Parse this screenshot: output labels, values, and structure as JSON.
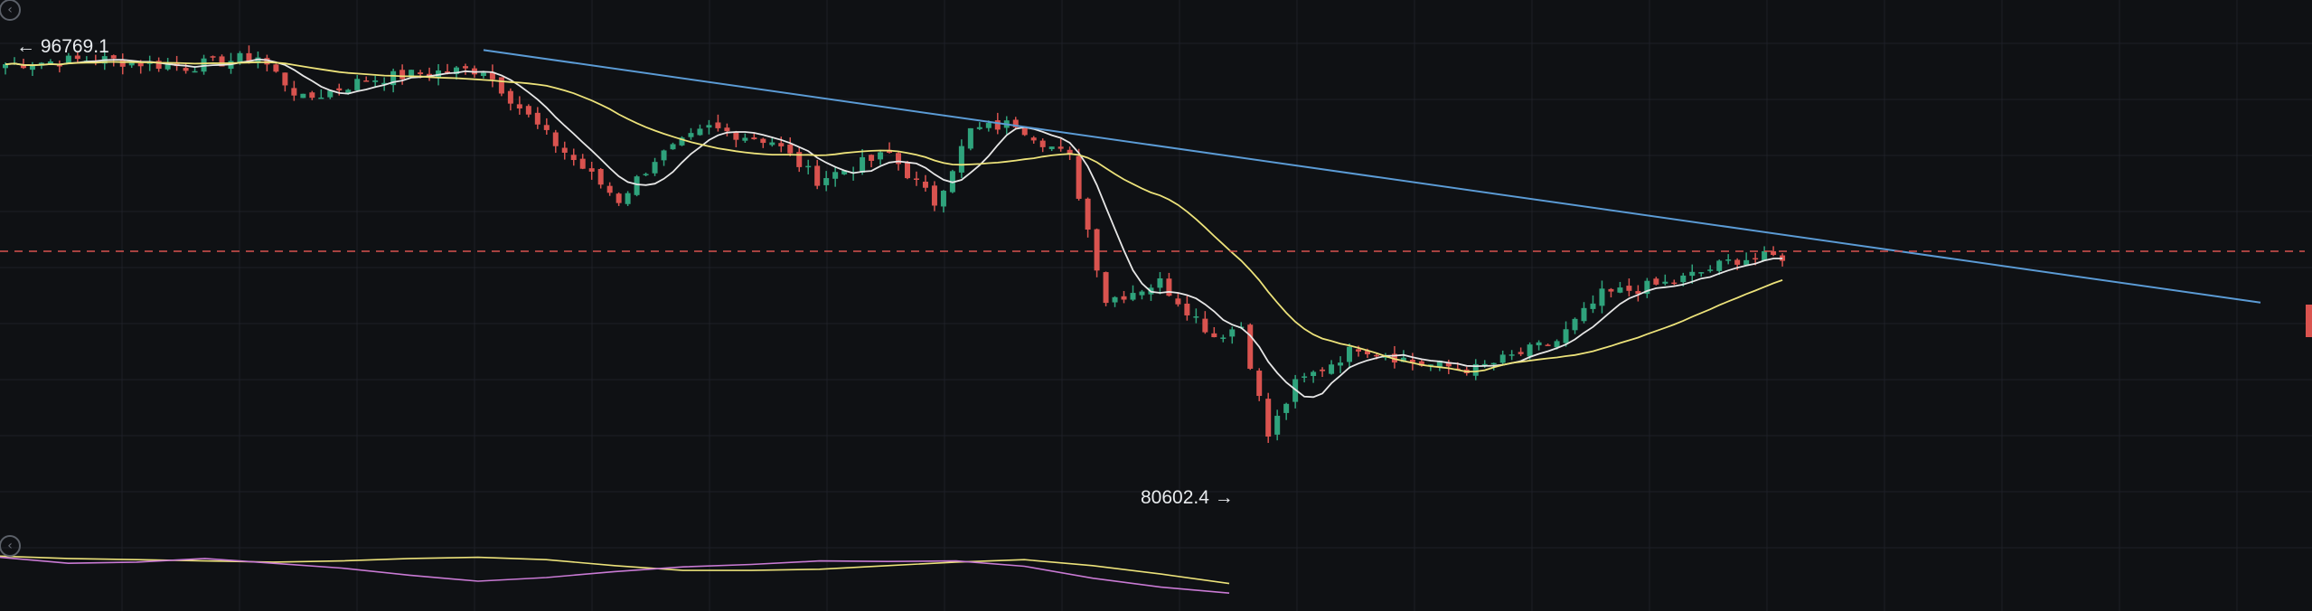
{
  "colors": {
    "background": "#0f1114",
    "grid": "#1d2026",
    "up": "#2fa37c",
    "down": "#d9534f",
    "ma_fast": "#e6e6e6",
    "ma_slow": "#ece27a",
    "trendline": "#5b9bd5",
    "current_price_line": "#d9534f"
  },
  "ui": {
    "collapse_icon_top": "chevron-left-circle-icon",
    "collapse_icon_bottom": "chevron-left-circle-icon"
  },
  "chart_data": {
    "type": "candlestick",
    "title": "",
    "xlabel": "",
    "ylabel": "",
    "ylim": [
      77000,
      98500
    ],
    "grid": true,
    "highest_label": "← 96769.1",
    "lowest_label": "80602.4 →",
    "high_value": 96769.1,
    "low_value": 80602.4,
    "current_price_line": 88700,
    "trendline": {
      "from_candle": 53,
      "from_price": 96550,
      "to_candle": 250,
      "to_price": 86700
    },
    "moving_averages": [
      {
        "color": "#e6e6e6",
        "period": 7
      },
      {
        "color": "#ece27a",
        "period": 25
      }
    ],
    "pivots": [
      [
        0,
        96000
      ],
      [
        10,
        96200
      ],
      [
        20,
        95900
      ],
      [
        28,
        96300
      ],
      [
        33,
        94600
      ],
      [
        40,
        95400
      ],
      [
        48,
        95700
      ],
      [
        53,
        95800
      ],
      [
        60,
        93200
      ],
      [
        68,
        90700
      ],
      [
        72,
        92300
      ],
      [
        78,
        93500
      ],
      [
        85,
        93000
      ],
      [
        90,
        91500
      ],
      [
        98,
        92500
      ],
      [
        103,
        90600
      ],
      [
        107,
        93400
      ],
      [
        112,
        93700
      ],
      [
        118,
        92300
      ],
      [
        122,
        86800
      ],
      [
        128,
        87500
      ],
      [
        134,
        85400
      ],
      [
        137,
        85800
      ],
      [
        140,
        81500
      ],
      [
        143,
        83500
      ],
      [
        150,
        85000
      ],
      [
        157,
        84300
      ],
      [
        163,
        84100
      ],
      [
        172,
        85200
      ],
      [
        177,
        87000
      ],
      [
        185,
        87500
      ],
      [
        192,
        88400
      ],
      [
        197,
        88500
      ]
    ],
    "volume": {
      "fast": [
        39,
        38,
        38.2,
        38.8,
        38,
        37.2,
        36,
        35,
        35.6,
        36.6,
        37.4,
        37.8,
        38.4,
        38.3,
        38.4,
        37.5,
        35.5,
        34,
        33
      ],
      "slow": [
        39.2,
        38.8,
        38.6,
        38.4,
        38.2,
        38.4,
        38.8,
        39,
        38.6,
        37.6,
        36.8,
        36.8,
        37,
        37.6,
        38.2,
        38.6,
        37.6,
        36.2,
        34.6
      ]
    }
  }
}
